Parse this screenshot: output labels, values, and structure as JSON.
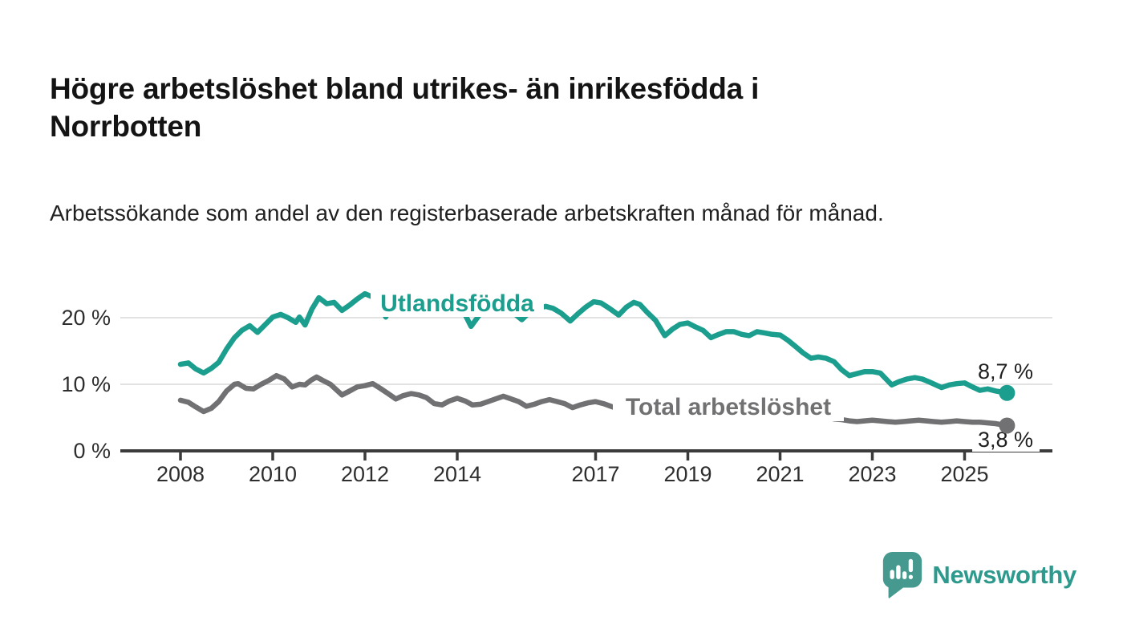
{
  "header": {
    "title": "Högre arbetslöshet bland utrikes- än inrikesfödda i Norrbotten",
    "subtitle": "Arbetssökande som andel av den registerbaserade arbetskraften månad för månad."
  },
  "footer": {
    "brand": "Newsworthy"
  },
  "colors": {
    "teal_line": "#1B9E8E",
    "gray_line": "#717173",
    "axis": "#3B3B3B",
    "grid": "#D9D9D9",
    "tick_text": "#2E2E2E",
    "value_text": "#1F1F1F",
    "logo": "#45998F",
    "brand_text": "#2D9A8D"
  },
  "chart_data": {
    "type": "line",
    "x_axis": {
      "tick_years": [
        "2008",
        "2010",
        "2012",
        "2014",
        "2017",
        "2019",
        "2021",
        "2023",
        "2025"
      ]
    },
    "y_axis": {
      "ticks": [
        {
          "value": 0,
          "label": "0 %"
        },
        {
          "value": 10,
          "label": "10 %"
        },
        {
          "value": 20,
          "label": "20 %"
        }
      ],
      "range": [
        0,
        25.5
      ]
    },
    "series": [
      {
        "name": "Utlandsfödda",
        "color": "#1B9E8E",
        "end_label": "8,7 %",
        "points": [
          [
            2008.0,
            13.0
          ],
          [
            2008.17,
            13.2
          ],
          [
            2008.33,
            12.3
          ],
          [
            2008.5,
            11.7
          ],
          [
            2008.67,
            12.4
          ],
          [
            2008.83,
            13.3
          ],
          [
            2009.0,
            15.3
          ],
          [
            2009.17,
            17.0
          ],
          [
            2009.33,
            18.1
          ],
          [
            2009.5,
            18.8
          ],
          [
            2009.67,
            17.8
          ],
          [
            2009.83,
            18.9
          ],
          [
            2010.0,
            20.1
          ],
          [
            2010.17,
            20.5
          ],
          [
            2010.33,
            20.0
          ],
          [
            2010.5,
            19.3
          ],
          [
            2010.58,
            20.1
          ],
          [
            2010.7,
            18.9
          ],
          [
            2010.85,
            21.3
          ],
          [
            2011.0,
            23.0
          ],
          [
            2011.17,
            22.1
          ],
          [
            2011.33,
            22.3
          ],
          [
            2011.5,
            21.1
          ],
          [
            2011.67,
            21.9
          ],
          [
            2011.83,
            22.8
          ],
          [
            2012.0,
            23.6
          ],
          [
            2012.17,
            23.1
          ],
          [
            2012.33,
            21.8
          ],
          [
            2012.45,
            20.1
          ],
          [
            2012.58,
            21.9
          ],
          [
            2012.75,
            22.6
          ],
          [
            2012.92,
            22.9
          ],
          [
            2013.08,
            22.5
          ],
          [
            2013.25,
            22.2
          ],
          [
            2013.42,
            21.4
          ],
          [
            2013.58,
            21.9
          ],
          [
            2013.75,
            22.1
          ],
          [
            2013.92,
            22.4
          ],
          [
            2014.08,
            21.7
          ],
          [
            2014.3,
            18.7
          ],
          [
            2014.5,
            20.6
          ],
          [
            2014.67,
            21.4
          ],
          [
            2014.83,
            21.8
          ],
          [
            2015.0,
            21.7
          ],
          [
            2015.17,
            21.0
          ],
          [
            2015.4,
            19.7
          ],
          [
            2015.58,
            20.9
          ],
          [
            2015.75,
            21.4
          ],
          [
            2015.92,
            21.7
          ],
          [
            2016.08,
            21.4
          ],
          [
            2016.25,
            20.7
          ],
          [
            2016.45,
            19.5
          ],
          [
            2016.62,
            20.6
          ],
          [
            2016.79,
            21.6
          ],
          [
            2016.96,
            22.4
          ],
          [
            2017.12,
            22.2
          ],
          [
            2017.3,
            21.4
          ],
          [
            2017.5,
            20.4
          ],
          [
            2017.67,
            21.6
          ],
          [
            2017.83,
            22.3
          ],
          [
            2017.96,
            22.0
          ],
          [
            2018.12,
            20.8
          ],
          [
            2018.3,
            19.6
          ],
          [
            2018.5,
            17.3
          ],
          [
            2018.67,
            18.3
          ],
          [
            2018.83,
            19.0
          ],
          [
            2019.0,
            19.2
          ],
          [
            2019.17,
            18.6
          ],
          [
            2019.33,
            18.1
          ],
          [
            2019.5,
            17.0
          ],
          [
            2019.67,
            17.5
          ],
          [
            2019.83,
            17.9
          ],
          [
            2020.0,
            17.9
          ],
          [
            2020.17,
            17.5
          ],
          [
            2020.33,
            17.3
          ],
          [
            2020.5,
            17.9
          ],
          [
            2020.67,
            17.7
          ],
          [
            2020.83,
            17.5
          ],
          [
            2021.0,
            17.4
          ],
          [
            2021.17,
            16.6
          ],
          [
            2021.33,
            15.7
          ],
          [
            2021.5,
            14.7
          ],
          [
            2021.67,
            13.9
          ],
          [
            2021.83,
            14.1
          ],
          [
            2022.0,
            13.9
          ],
          [
            2022.17,
            13.4
          ],
          [
            2022.33,
            12.2
          ],
          [
            2022.5,
            11.3
          ],
          [
            2022.67,
            11.6
          ],
          [
            2022.83,
            11.9
          ],
          [
            2023.0,
            11.9
          ],
          [
            2023.17,
            11.7
          ],
          [
            2023.42,
            9.9
          ],
          [
            2023.58,
            10.4
          ],
          [
            2023.75,
            10.8
          ],
          [
            2023.92,
            11.0
          ],
          [
            2024.08,
            10.8
          ],
          [
            2024.25,
            10.3
          ],
          [
            2024.5,
            9.5
          ],
          [
            2024.67,
            9.9
          ],
          [
            2024.83,
            10.1
          ],
          [
            2025.0,
            10.2
          ],
          [
            2025.17,
            9.6
          ],
          [
            2025.33,
            9.1
          ],
          [
            2025.5,
            9.3
          ],
          [
            2025.67,
            9.0
          ],
          [
            2025.83,
            8.8
          ],
          [
            2025.92,
            8.7
          ]
        ]
      },
      {
        "name": "Total arbetslöshet",
        "color": "#717173",
        "end_label": "3,8 %",
        "points": [
          [
            2008.0,
            7.6
          ],
          [
            2008.17,
            7.3
          ],
          [
            2008.33,
            6.6
          ],
          [
            2008.5,
            5.9
          ],
          [
            2008.67,
            6.4
          ],
          [
            2008.83,
            7.4
          ],
          [
            2009.0,
            9.0
          ],
          [
            2009.17,
            10.0
          ],
          [
            2009.25,
            10.1
          ],
          [
            2009.42,
            9.4
          ],
          [
            2009.58,
            9.3
          ],
          [
            2009.75,
            10.0
          ],
          [
            2009.92,
            10.6
          ],
          [
            2010.08,
            11.3
          ],
          [
            2010.25,
            10.8
          ],
          [
            2010.42,
            9.6
          ],
          [
            2010.58,
            10.0
          ],
          [
            2010.7,
            9.9
          ],
          [
            2010.83,
            10.6
          ],
          [
            2010.95,
            11.1
          ],
          [
            2011.08,
            10.6
          ],
          [
            2011.25,
            10.0
          ],
          [
            2011.5,
            8.4
          ],
          [
            2011.67,
            9.0
          ],
          [
            2011.83,
            9.6
          ],
          [
            2012.0,
            9.8
          ],
          [
            2012.17,
            10.1
          ],
          [
            2012.33,
            9.4
          ],
          [
            2012.5,
            8.6
          ],
          [
            2012.67,
            7.8
          ],
          [
            2012.83,
            8.3
          ],
          [
            2013.0,
            8.6
          ],
          [
            2013.17,
            8.4
          ],
          [
            2013.33,
            8.0
          ],
          [
            2013.5,
            7.1
          ],
          [
            2013.67,
            6.9
          ],
          [
            2013.83,
            7.5
          ],
          [
            2014.0,
            7.9
          ],
          [
            2014.17,
            7.5
          ],
          [
            2014.33,
            6.9
          ],
          [
            2014.5,
            7.0
          ],
          [
            2014.67,
            7.4
          ],
          [
            2014.83,
            7.8
          ],
          [
            2015.0,
            8.2
          ],
          [
            2015.17,
            7.8
          ],
          [
            2015.33,
            7.4
          ],
          [
            2015.5,
            6.7
          ],
          [
            2015.67,
            7.0
          ],
          [
            2015.83,
            7.4
          ],
          [
            2016.0,
            7.7
          ],
          [
            2016.17,
            7.4
          ],
          [
            2016.33,
            7.1
          ],
          [
            2016.5,
            6.5
          ],
          [
            2016.67,
            6.9
          ],
          [
            2016.83,
            7.2
          ],
          [
            2017.0,
            7.4
          ],
          [
            2017.17,
            7.1
          ],
          [
            2017.33,
            6.7
          ],
          [
            2017.45,
            6.4
          ],
          [
            2017.58,
            6.2
          ],
          [
            2017.75,
            6.7
          ],
          [
            2017.92,
            7.0
          ],
          [
            2018.08,
            6.8
          ],
          [
            2018.25,
            6.4
          ],
          [
            2018.5,
            5.8
          ],
          [
            2018.75,
            6.2
          ],
          [
            2019.0,
            6.4
          ],
          [
            2019.25,
            6.1
          ],
          [
            2019.5,
            5.7
          ],
          [
            2019.75,
            6.0
          ],
          [
            2020.0,
            6.2
          ],
          [
            2020.25,
            6.6
          ],
          [
            2020.5,
            7.2
          ],
          [
            2020.75,
            7.0
          ],
          [
            2021.0,
            6.8
          ],
          [
            2021.25,
            6.3
          ],
          [
            2021.5,
            5.7
          ],
          [
            2021.75,
            5.3
          ],
          [
            2022.0,
            5.0
          ],
          [
            2022.17,
            4.8
          ],
          [
            2022.33,
            4.7
          ],
          [
            2022.5,
            4.5
          ],
          [
            2022.67,
            4.4
          ],
          [
            2022.83,
            4.5
          ],
          [
            2023.0,
            4.6
          ],
          [
            2023.17,
            4.5
          ],
          [
            2023.33,
            4.4
          ],
          [
            2023.5,
            4.3
          ],
          [
            2023.67,
            4.4
          ],
          [
            2023.83,
            4.5
          ],
          [
            2024.0,
            4.6
          ],
          [
            2024.17,
            4.5
          ],
          [
            2024.33,
            4.4
          ],
          [
            2024.5,
            4.3
          ],
          [
            2024.67,
            4.4
          ],
          [
            2024.83,
            4.5
          ],
          [
            2025.0,
            4.4
          ],
          [
            2025.17,
            4.3
          ],
          [
            2025.33,
            4.3
          ],
          [
            2025.5,
            4.2
          ],
          [
            2025.67,
            4.1
          ],
          [
            2025.83,
            3.9
          ],
          [
            2025.92,
            3.8
          ]
        ]
      }
    ]
  }
}
